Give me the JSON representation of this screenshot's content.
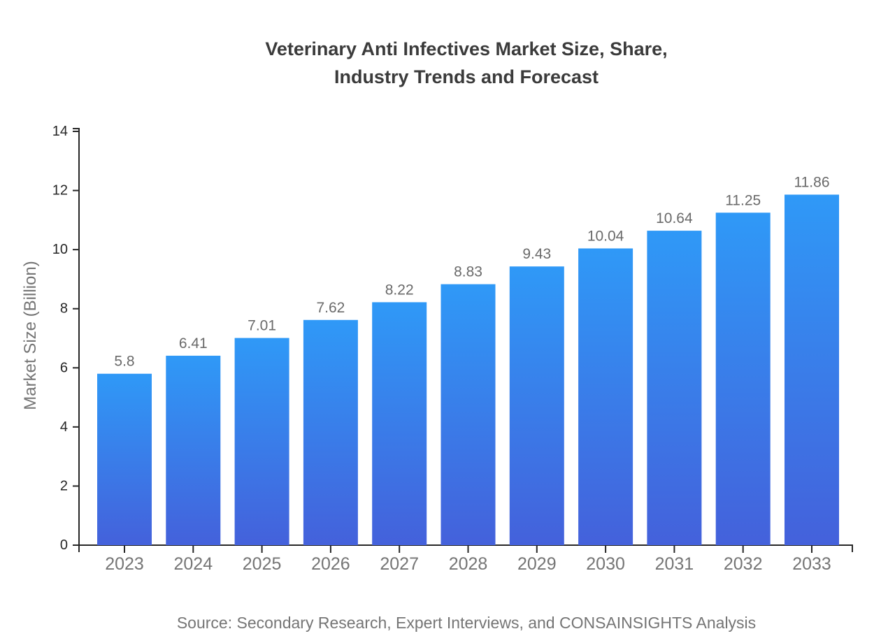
{
  "chart": {
    "title": "Veterinary Anti Infectives Market Size, Share,\nIndustry Trends and Forecast",
    "ylabel": "Market Size (Billion)",
    "source": "Source: Secondary Research, Expert Interviews, and CONSAINSIGHTS Analysis"
  },
  "chart_data": {
    "type": "bar",
    "title": "Veterinary Anti Infectives Market Size, Share, Industry Trends and Forecast",
    "categories": [
      "2023",
      "2024",
      "2025",
      "2026",
      "2027",
      "2028",
      "2029",
      "2030",
      "2031",
      "2032",
      "2033"
    ],
    "values": [
      5.8,
      6.41,
      7.01,
      7.62,
      8.22,
      8.83,
      9.43,
      10.04,
      10.64,
      11.25,
      11.86
    ],
    "value_labels": [
      "5.8",
      "6.41",
      "7.01",
      "7.62",
      "8.22",
      "8.83",
      "9.43",
      "10.04",
      "10.64",
      "11.25",
      "11.86"
    ],
    "xlabel": "",
    "ylabel": "Market Size (Billion)",
    "ylim": [
      0,
      14
    ],
    "yticks": [
      0,
      2,
      4,
      6,
      8,
      10,
      12,
      14
    ],
    "grid": false,
    "legend": null,
    "source": "Source: Secondary Research, Expert Interviews, and CONSAINSIGHTS Analysis",
    "colors": {
      "bar_gradient_top": "#2F99F7",
      "bar_gradient_bottom": "#4461DB",
      "axis": "#262626",
      "y_tick_label": "#262626",
      "x_tick_label": "#757575",
      "value_label": "#6a6a6a",
      "title": "#3b3b3b",
      "source_text": "#757575"
    }
  }
}
